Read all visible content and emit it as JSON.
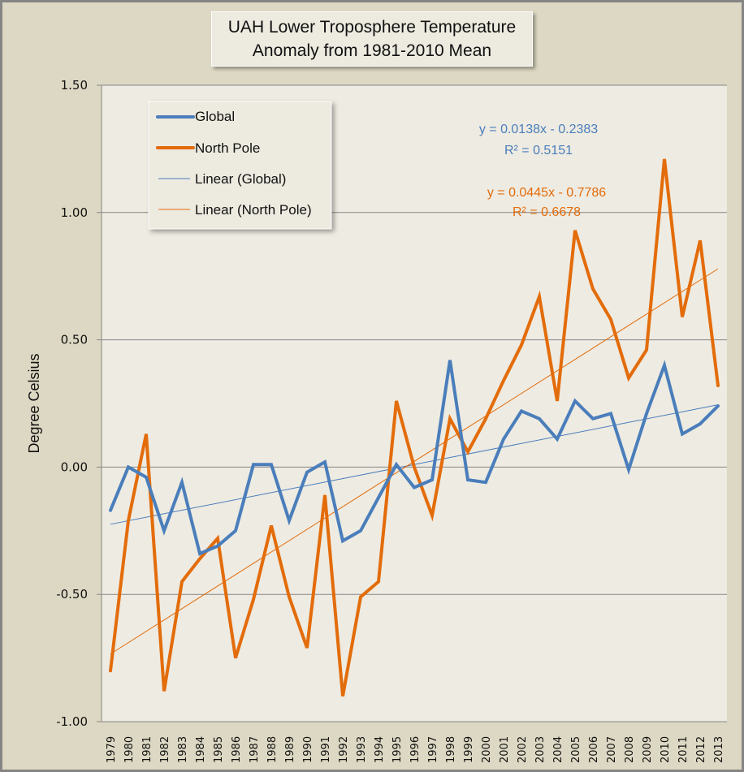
{
  "chart_data": {
    "type": "line",
    "title_lines": [
      "UAH Lower Troposphere Temperature",
      "Anomaly from 1981-2010 Mean"
    ],
    "xlabel": "",
    "ylabel": "Degree Celsius",
    "ylim": [
      -1.0,
      1.5
    ],
    "yticks": [
      "1.50",
      "1.00",
      "0.50",
      "0.00",
      "-0.50",
      "-1.00"
    ],
    "ytick_values": [
      1.5,
      1.0,
      0.5,
      0.0,
      -0.5,
      -1.0
    ],
    "grid": true,
    "legend_position": "top-left",
    "x": [
      1979,
      1980,
      1981,
      1982,
      1983,
      1984,
      1985,
      1986,
      1987,
      1988,
      1989,
      1990,
      1991,
      1992,
      1993,
      1994,
      1995,
      1996,
      1997,
      1998,
      1999,
      2000,
      2001,
      2002,
      2003,
      2004,
      2005,
      2006,
      2007,
      2008,
      2009,
      2010,
      2011,
      2012,
      2013
    ],
    "series": [
      {
        "name": "Global",
        "color": "#4a7ebb",
        "values": [
          -0.17,
          0.0,
          -0.04,
          -0.25,
          -0.06,
          -0.34,
          -0.31,
          -0.25,
          0.01,
          0.01,
          -0.21,
          -0.02,
          0.02,
          -0.29,
          -0.25,
          -0.12,
          0.01,
          -0.08,
          -0.05,
          0.42,
          -0.05,
          -0.06,
          0.11,
          0.22,
          0.19,
          0.11,
          0.26,
          0.19,
          0.21,
          -0.01,
          0.21,
          0.4,
          0.13,
          0.17,
          0.24
        ]
      },
      {
        "name": "North Pole",
        "color": "#e36c0a",
        "values": [
          -0.8,
          -0.21,
          0.13,
          -0.88,
          -0.45,
          -0.36,
          -0.28,
          -0.75,
          -0.52,
          -0.23,
          -0.51,
          -0.71,
          -0.11,
          -0.9,
          -0.51,
          -0.45,
          0.26,
          0.0,
          -0.19,
          0.19,
          0.06,
          0.19,
          0.34,
          0.48,
          0.67,
          0.26,
          0.93,
          0.7,
          0.58,
          0.35,
          0.46,
          1.21,
          0.59,
          0.89,
          0.32
        ]
      }
    ],
    "trendlines": [
      {
        "name": "Linear (Global)",
        "color": "#4a7ebb",
        "slope": 0.0138,
        "intercept": -0.2383,
        "equation": "y = 0.0138x - 0.2383",
        "r2": "R² = 0.5151"
      },
      {
        "name": "Linear (North Pole)",
        "color": "#e36c0a",
        "slope": 0.0445,
        "intercept": -0.7786,
        "equation": "y = 0.0445x - 0.7786",
        "r2": "R² = 0.6678"
      }
    ],
    "legend": [
      "Global",
      "North Pole",
      "Linear (Global)",
      "Linear (North Pole)"
    ]
  }
}
